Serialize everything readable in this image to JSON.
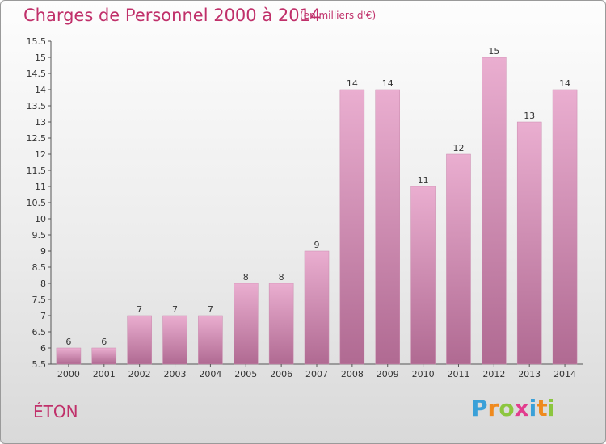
{
  "header": {
    "title": "Charges de Personnel 2000 à 2014",
    "subtitle": "(en milliers d'€)"
  },
  "footer": {
    "place": "ÉTON"
  },
  "logo": {
    "letters": [
      "P",
      "r",
      "o",
      "x",
      "i",
      "t",
      "i"
    ],
    "colors": [
      "#3aa0d8",
      "#ef8a1e",
      "#8cc63f",
      "#e23c8e",
      "#3aa0d8",
      "#ef8a1e",
      "#8cc63f"
    ]
  },
  "chart_data": {
    "type": "bar",
    "title": "Charges de Personnel 2000 à 2014",
    "subtitle": "(en milliers d'€)",
    "categories": [
      "2000",
      "2001",
      "2002",
      "2003",
      "2004",
      "2005",
      "2006",
      "2007",
      "2008",
      "2009",
      "2010",
      "2011",
      "2012",
      "2013",
      "2014"
    ],
    "values": [
      6,
      6,
      7,
      7,
      7,
      8,
      8,
      9,
      14,
      14,
      11,
      12,
      15,
      13,
      14
    ],
    "ylim": [
      5.5,
      15.5
    ],
    "yticks": [
      "5.5",
      "6",
      "6.5",
      "7",
      "7.5",
      "8",
      "8.5",
      "9",
      "9.5",
      "10",
      "10.5",
      "11",
      "11.5",
      "12",
      "12.5",
      "13",
      "13.5",
      "14",
      "14.5",
      "15",
      "15.5"
    ],
    "bar_color": "#d88fb6",
    "grid": false
  }
}
